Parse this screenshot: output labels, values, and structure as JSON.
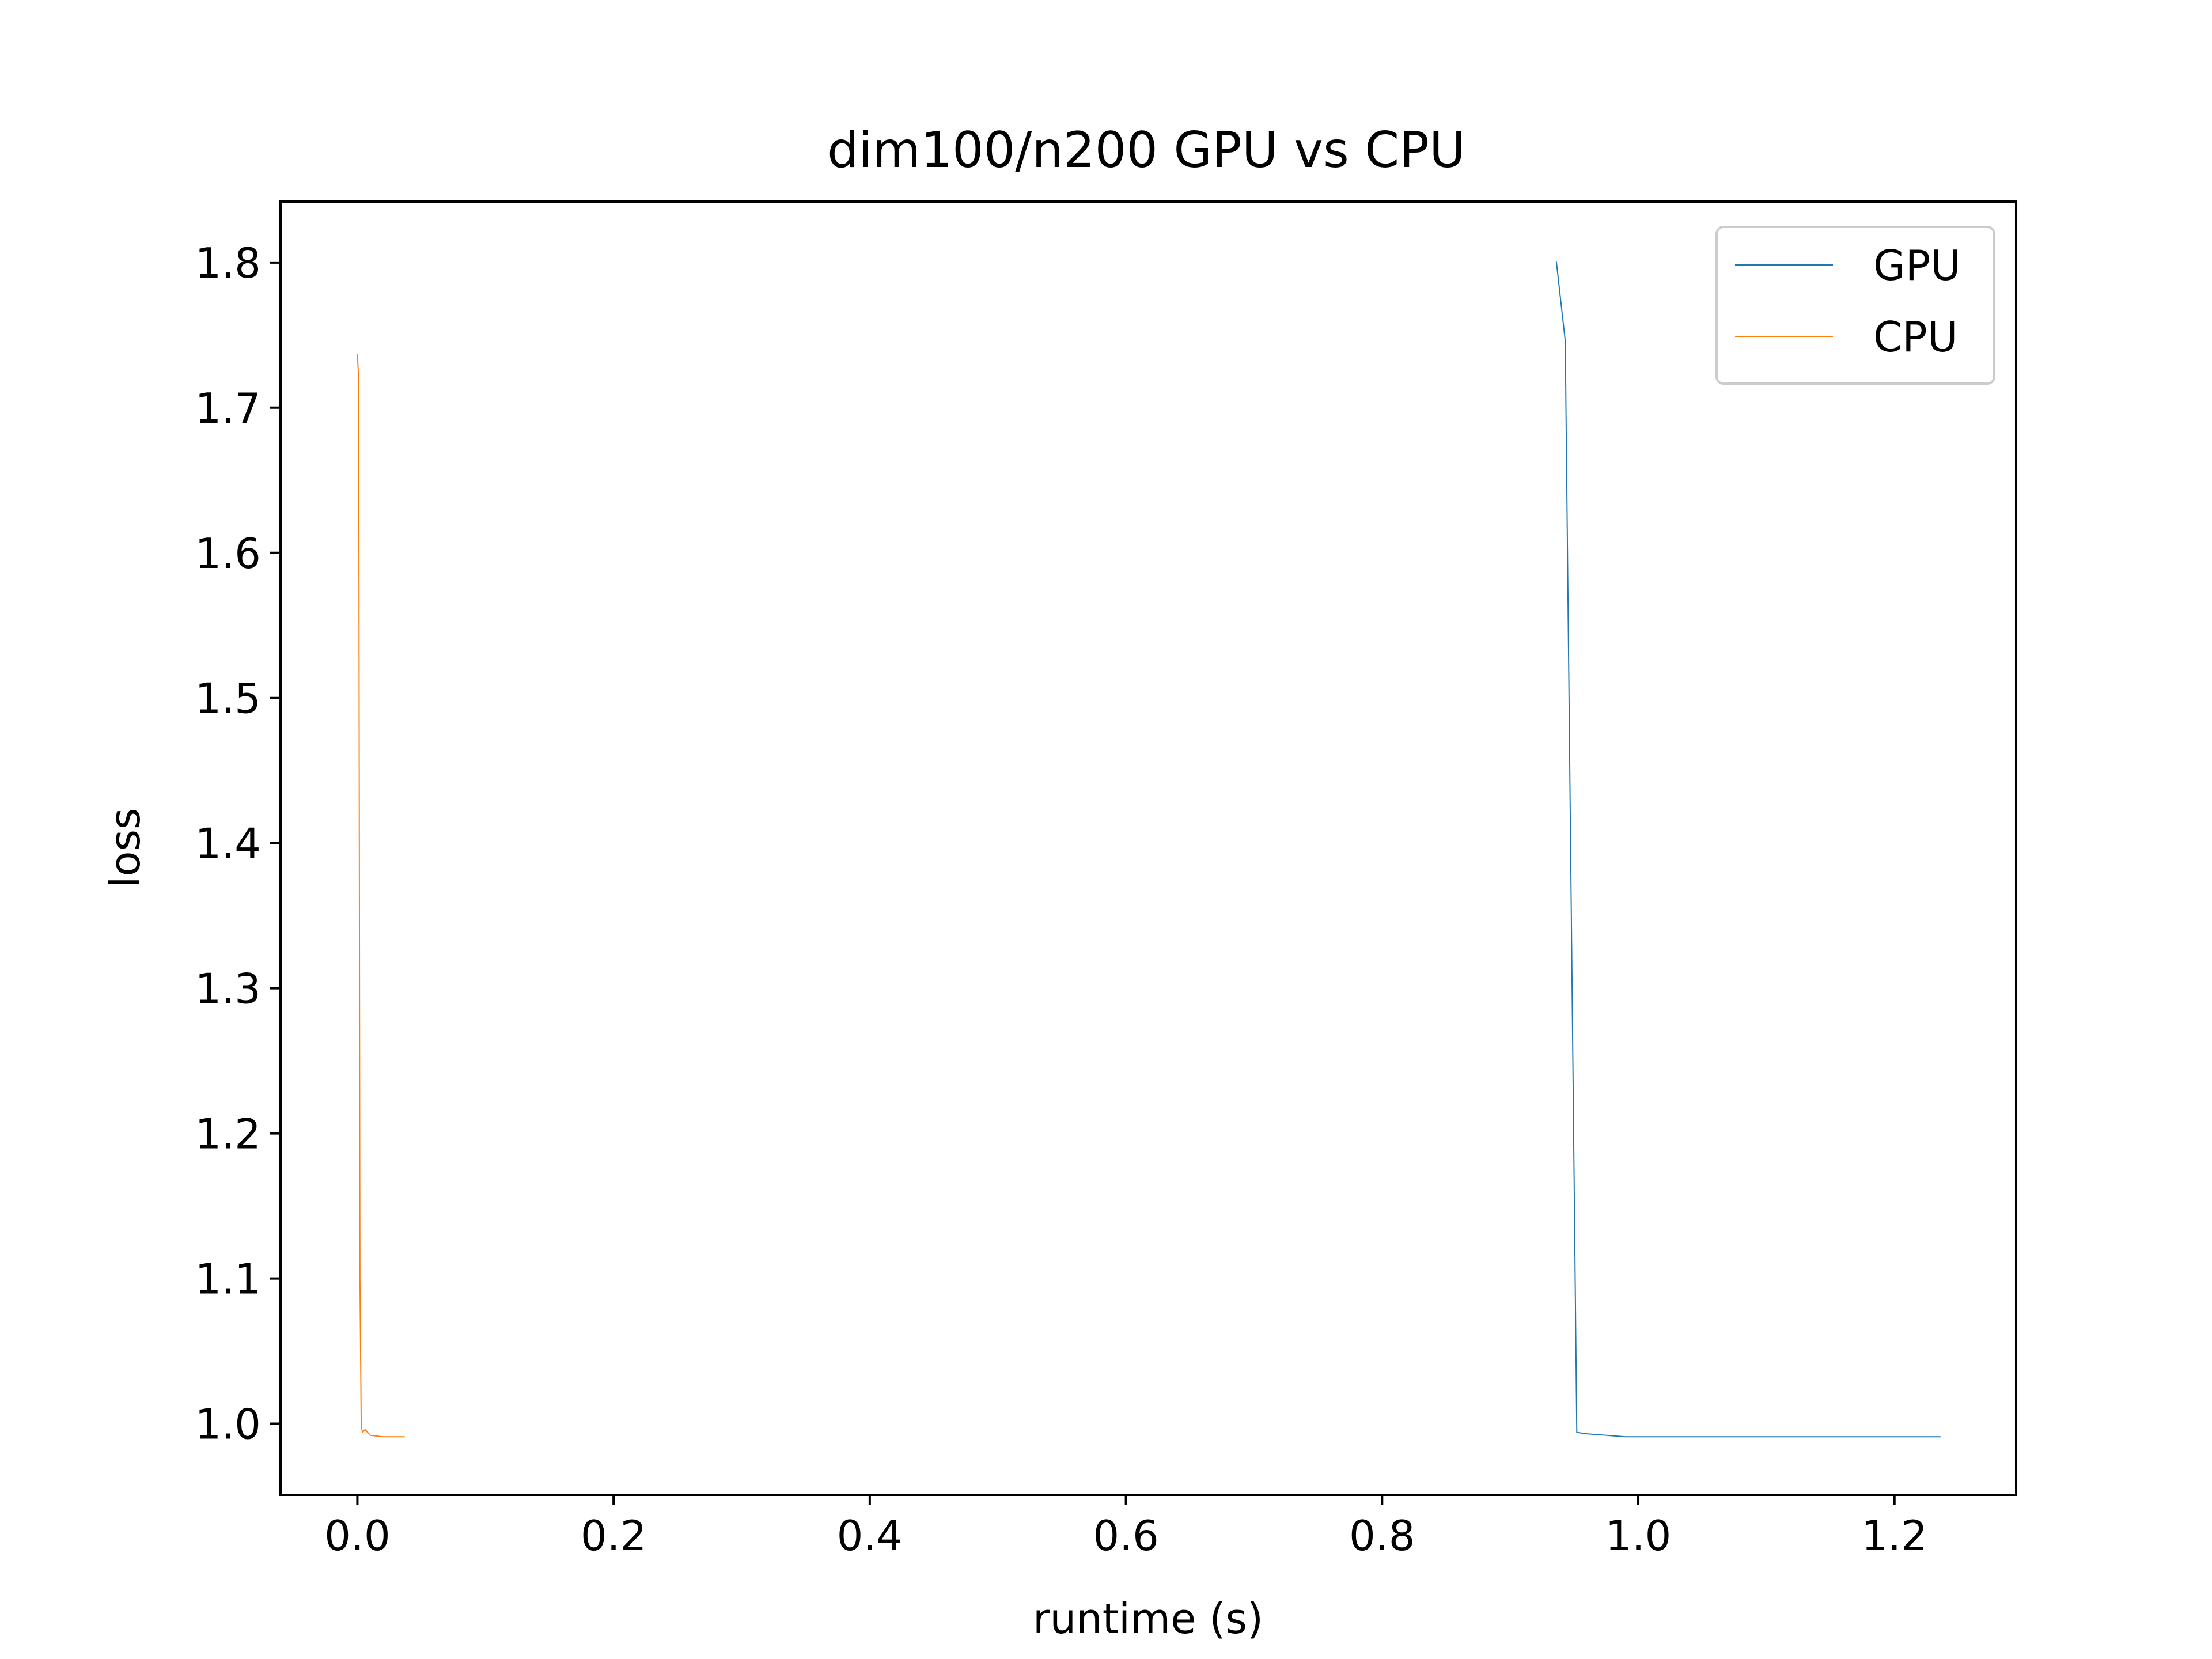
{
  "chart_data": {
    "type": "line",
    "title": "dim100/n200 GPU vs CPU",
    "xlabel": "runtime (s)",
    "ylabel": "loss",
    "xlim": [
      -0.06,
      1.295
    ],
    "ylim": [
      0.951,
      1.842
    ],
    "xticks": [
      "0.0",
      "0.2",
      "0.4",
      "0.6",
      "0.8",
      "1.0",
      "1.2"
    ],
    "yticks": [
      "1.0",
      "1.1",
      "1.2",
      "1.3",
      "1.4",
      "1.5",
      "1.6",
      "1.7",
      "1.8"
    ],
    "grid": false,
    "legend_position": "upper right",
    "series": [
      {
        "name": "GPU",
        "color": "#1f77b4",
        "x": [
          0.936,
          0.943,
          0.952,
          0.96,
          0.975,
          0.99,
          1.01,
          1.05,
          1.1,
          1.15,
          1.2,
          1.236
        ],
        "y": [
          1.801,
          1.746,
          0.994,
          0.993,
          0.992,
          0.991,
          0.991,
          0.991,
          0.991,
          0.991,
          0.991,
          0.991
        ]
      },
      {
        "name": "CPU",
        "color": "#ff7f0e",
        "x": [
          0.0,
          0.001,
          0.002,
          0.003,
          0.004,
          0.006,
          0.01,
          0.02,
          0.03,
          0.037
        ],
        "y": [
          1.737,
          1.72,
          1.1,
          0.998,
          0.994,
          0.996,
          0.992,
          0.991,
          0.991,
          0.991
        ]
      }
    ]
  }
}
